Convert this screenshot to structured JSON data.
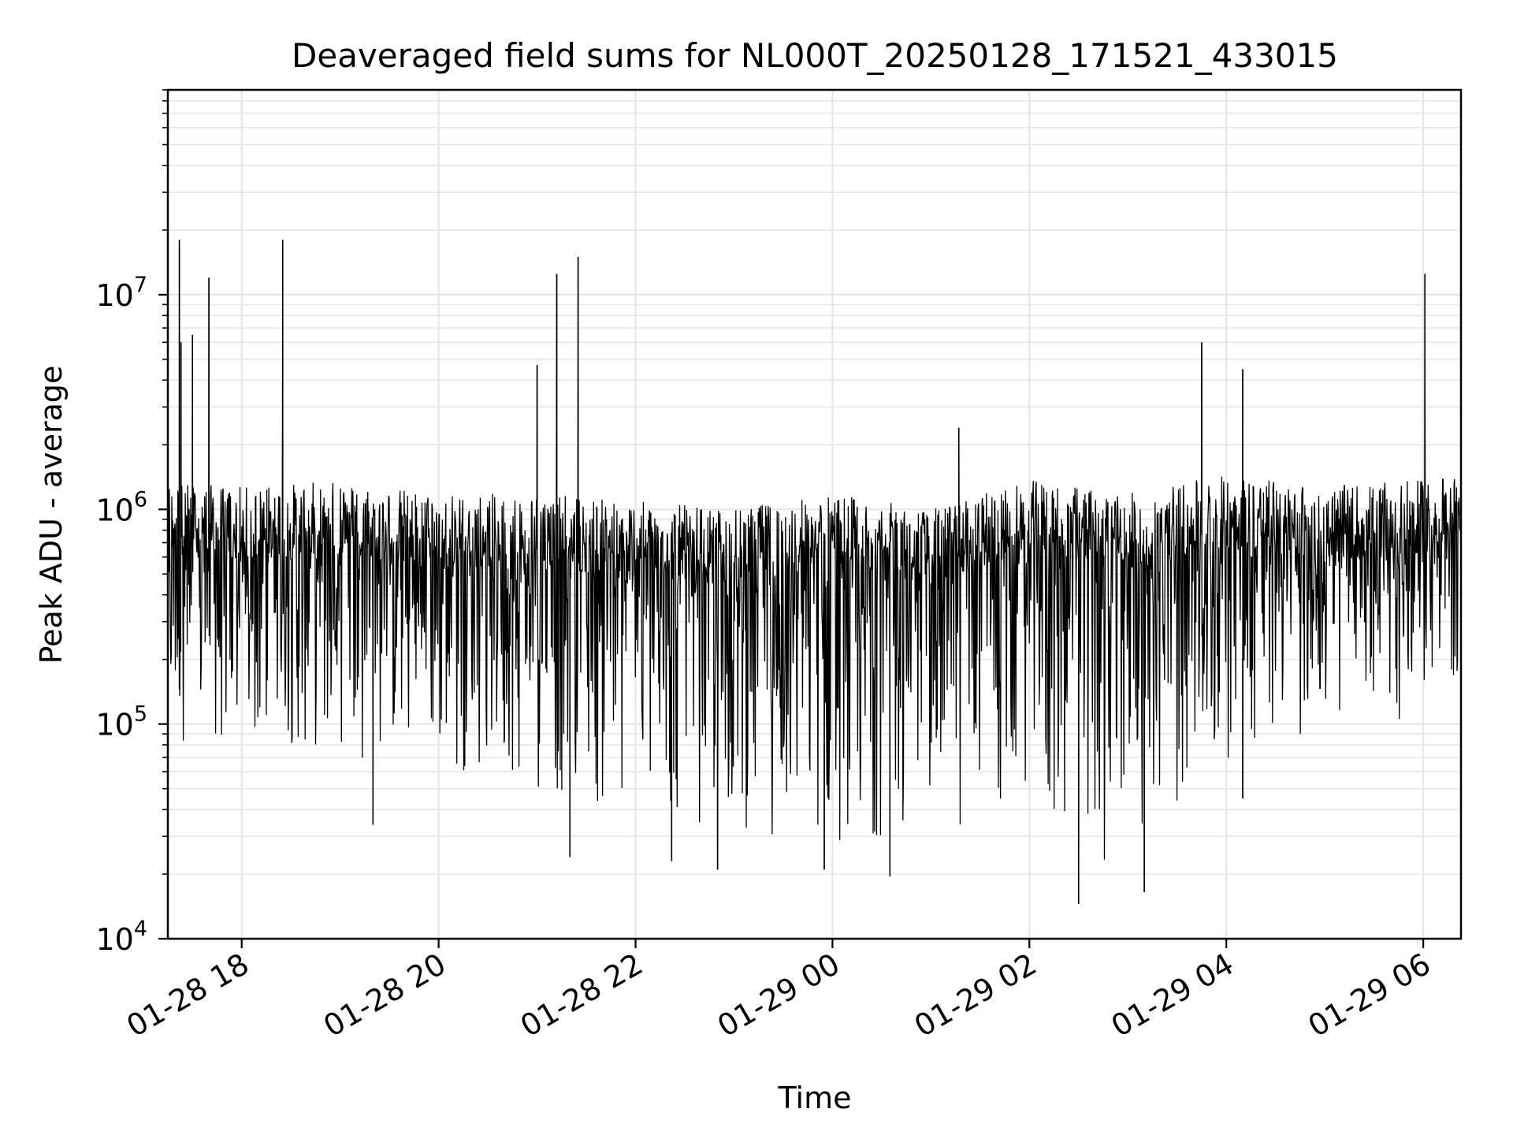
{
  "chart_data": {
    "type": "line",
    "title": "Deaveraged field sums for NL000T_20250128_171521_433015",
    "xlabel": "Time",
    "ylabel": "Peak ADU - average",
    "y_scale": "log",
    "ylim": [
      10000,
      90000000
    ],
    "xlim": [
      "2025-01-28 17:15",
      "2025-01-29 06:23"
    ],
    "grid": true,
    "legend": "none",
    "x_ticks": [
      {
        "label": "01-28 18",
        "value": "2025-01-28 18:00"
      },
      {
        "label": "01-28 20",
        "value": "2025-01-28 20:00"
      },
      {
        "label": "01-28 22",
        "value": "2025-01-28 22:00"
      },
      {
        "label": "01-29 00",
        "value": "2025-01-29 00:00"
      },
      {
        "label": "01-29 02",
        "value": "2025-01-29 02:00"
      },
      {
        "label": "01-29 04",
        "value": "2025-01-29 04:00"
      },
      {
        "label": "01-29 06",
        "value": "2025-01-29 06:00"
      }
    ],
    "y_ticks": [
      {
        "base": "10",
        "exp": "4",
        "value": 10000
      },
      {
        "base": "10",
        "exp": "5",
        "value": 100000
      },
      {
        "base": "10",
        "exp": "6",
        "value": 1000000
      },
      {
        "base": "10",
        "exp": "7",
        "value": 10000000
      }
    ],
    "series": [
      {
        "color": "#000000",
        "baseline_envelope": [
          {
            "x": "2025-01-28 17:15",
            "low": 80000,
            "high": 1500000
          },
          {
            "x": "2025-01-28 18:00",
            "low": 60000,
            "high": 1400000
          },
          {
            "x": "2025-01-28 19:00",
            "low": 70000,
            "high": 1500000
          },
          {
            "x": "2025-01-28 20:00",
            "low": 60000,
            "high": 1300000
          },
          {
            "x": "2025-01-28 21:00",
            "low": 45000,
            "high": 1300000
          },
          {
            "x": "2025-01-28 22:00",
            "low": 28000,
            "high": 1200000
          },
          {
            "x": "2025-01-28 23:00",
            "low": 30000,
            "high": 1100000
          },
          {
            "x": "2025-01-29 00:00",
            "low": 25000,
            "high": 1300000
          },
          {
            "x": "2025-01-29 01:00",
            "low": 30000,
            "high": 1100000
          },
          {
            "x": "2025-01-29 02:00",
            "low": 30000,
            "high": 1500000
          },
          {
            "x": "2025-01-29 03:00",
            "low": 20000,
            "high": 1300000
          },
          {
            "x": "2025-01-29 04:00",
            "low": 60000,
            "high": 1600000
          },
          {
            "x": "2025-01-29 05:00",
            "low": 90000,
            "high": 1400000
          },
          {
            "x": "2025-01-29 06:00",
            "low": 100000,
            "high": 1500000
          },
          {
            "x": "2025-01-29 06:23",
            "low": 150000,
            "high": 1600000
          }
        ],
        "spikes": [
          {
            "x": "2025-01-28 17:22",
            "y": 18000000
          },
          {
            "x": "2025-01-28 17:23",
            "y": 6000000
          },
          {
            "x": "2025-01-28 17:30",
            "y": 6500000
          },
          {
            "x": "2025-01-28 17:40",
            "y": 12000000
          },
          {
            "x": "2025-01-28 18:25",
            "y": 18000000
          },
          {
            "x": "2025-01-28 21:00",
            "y": 4700000
          },
          {
            "x": "2025-01-28 21:12",
            "y": 12500000
          },
          {
            "x": "2025-01-28 21:25",
            "y": 15000000
          },
          {
            "x": "2025-01-29 01:17",
            "y": 2400000
          },
          {
            "x": "2025-01-29 03:45",
            "y": 6000000
          },
          {
            "x": "2025-01-29 04:10",
            "y": 4500000
          },
          {
            "x": "2025-01-29 06:01",
            "y": 12500000
          }
        ],
        "dips": [
          {
            "x": "2025-01-28 19:20",
            "y": 34000
          },
          {
            "x": "2025-01-28 21:20",
            "y": 24000
          },
          {
            "x": "2025-01-28 22:22",
            "y": 23000
          },
          {
            "x": "2025-01-28 22:50",
            "y": 21000
          },
          {
            "x": "2025-01-28 23:55",
            "y": 21000
          },
          {
            "x": "2025-01-29 00:35",
            "y": 19500
          },
          {
            "x": "2025-01-29 02:30",
            "y": 14500
          },
          {
            "x": "2025-01-29 03:10",
            "y": 16500
          },
          {
            "x": "2025-01-29 04:10",
            "y": 45000
          }
        ]
      }
    ]
  }
}
